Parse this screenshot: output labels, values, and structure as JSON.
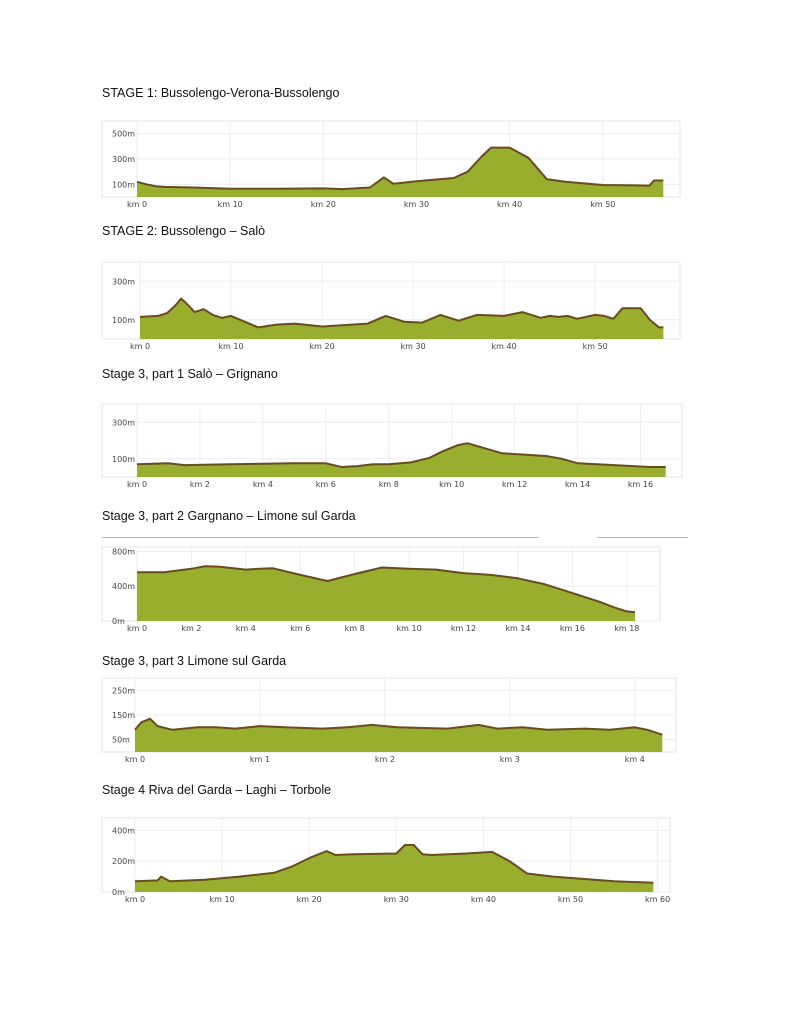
{
  "chart_data": [
    {
      "type": "area",
      "title": "STAGE 1: Bussolengo-Verona-Bussolengo",
      "x_ticks": [
        "km 0",
        "km 10",
        "km 20",
        "km 30",
        "km 40",
        "km 50"
      ],
      "y_ticks": [
        "500m",
        "300m",
        "100m"
      ],
      "xlim": [
        0,
        57
      ],
      "ylim": [
        0,
        600
      ],
      "x": [
        0,
        1,
        2,
        3,
        6,
        10,
        15,
        20,
        22,
        25,
        26.5,
        27.5,
        30,
        34,
        35.5,
        37,
        38,
        40,
        42,
        44,
        46,
        50,
        55,
        55.5,
        56.5
      ],
      "y": [
        120,
        100,
        85,
        80,
        75,
        65,
        65,
        68,
        62,
        75,
        155,
        105,
        125,
        150,
        200,
        320,
        390,
        390,
        310,
        140,
        120,
        95,
        90,
        130,
        130
      ],
      "fill": "#99ad2e",
      "stroke": "#6b4a1e"
    },
    {
      "type": "area",
      "title": "STAGE 2: Bussolengo – Salò",
      "x_ticks": [
        "km 0",
        "km 10",
        "km 20",
        "km 30",
        "km 40",
        "km 50"
      ],
      "y_ticks": [
        "300m",
        "100m"
      ],
      "xlim": [
        0,
        58
      ],
      "ylim": [
        0,
        400
      ],
      "x": [
        0,
        2,
        3,
        4,
        4.5,
        5,
        6,
        7,
        8,
        9,
        10,
        12,
        13,
        15,
        17,
        20,
        25,
        27,
        29,
        31,
        33,
        35,
        37,
        40,
        42,
        44,
        45,
        46,
        47,
        48,
        50,
        51,
        52,
        53,
        55,
        56,
        57,
        57.5
      ],
      "y": [
        115,
        120,
        135,
        180,
        210,
        190,
        140,
        155,
        125,
        110,
        120,
        80,
        60,
        75,
        80,
        65,
        80,
        120,
        90,
        85,
        125,
        95,
        125,
        120,
        140,
        110,
        120,
        115,
        120,
        105,
        125,
        120,
        105,
        160,
        160,
        100,
        60,
        60
      ],
      "fill": "#99ad2e",
      "stroke": "#6b4a1e"
    },
    {
      "type": "area",
      "title": "Stage 3, part 1 Salò – Grignano",
      "x_ticks": [
        "km 0",
        "km 2",
        "km 4",
        "km 6",
        "km 8",
        "km 10",
        "km 12",
        "km 14",
        "km 16"
      ],
      "y_ticks": [
        "300m",
        "100m"
      ],
      "xlim": [
        0,
        17
      ],
      "ylim": [
        0,
        400
      ],
      "x": [
        0,
        1,
        1.5,
        3,
        5,
        6,
        6.5,
        7,
        7.5,
        8,
        8.7,
        9.3,
        9.7,
        10.2,
        10.5,
        11,
        11.6,
        13,
        13.5,
        14,
        16.3,
        16.8
      ],
      "y": [
        70,
        75,
        65,
        70,
        75,
        75,
        55,
        60,
        70,
        70,
        80,
        105,
        140,
        175,
        185,
        160,
        130,
        115,
        100,
        75,
        55,
        55
      ],
      "fill": "#99ad2e",
      "stroke": "#6b4a1e"
    },
    {
      "type": "area",
      "title": "Stage 3, part 2 Gargnano – Limone sul Garda",
      "x_ticks": [
        "km 0",
        "km 2",
        "km 4",
        "km 6",
        "km 8",
        "km 10",
        "km 12",
        "km 14",
        "km 16",
        "km 18"
      ],
      "y_ticks": [
        "800m",
        "400m",
        "0m"
      ],
      "xlim": [
        0,
        19
      ],
      "ylim": [
        0,
        850
      ],
      "x": [
        0,
        1,
        2,
        2.5,
        3,
        4,
        4.5,
        5,
        6,
        7,
        8,
        9,
        10,
        11,
        12,
        13,
        14,
        15,
        16,
        17,
        17.5,
        18,
        18.3
      ],
      "y": [
        560,
        560,
        600,
        630,
        625,
        590,
        600,
        605,
        530,
        460,
        540,
        615,
        600,
        590,
        550,
        530,
        490,
        420,
        320,
        220,
        160,
        110,
        100
      ],
      "fill": "#99ad2e",
      "stroke": "#6b4a1e"
    },
    {
      "type": "area",
      "title": "Stage 3, part 3 Limone sul Garda",
      "x_ticks": [
        "km 0",
        "km 1",
        "km 2",
        "km 3",
        "km 4"
      ],
      "y_ticks": [
        "250m",
        "150m",
        "50m"
      ],
      "xlim": [
        0,
        4.3
      ],
      "ylim": [
        0,
        300
      ],
      "x": [
        0,
        0.05,
        0.12,
        0.18,
        0.3,
        0.5,
        0.65,
        0.8,
        1.0,
        1.2,
        1.5,
        1.7,
        1.9,
        2.1,
        2.5,
        2.75,
        2.9,
        3.1,
        3.3,
        3.6,
        3.8,
        4.0,
        4.1,
        4.22
      ],
      "y": [
        90,
        120,
        135,
        105,
        90,
        100,
        100,
        95,
        105,
        100,
        95,
        100,
        110,
        100,
        95,
        110,
        95,
        100,
        90,
        95,
        90,
        100,
        90,
        70
      ],
      "fill": "#99ad2e",
      "stroke": "#6b4a1e"
    },
    {
      "type": "area",
      "title": "Stage 4 Riva del Garda – Laghi – Torbole",
      "x_ticks": [
        "km 0",
        "km 10",
        "km 20",
        "km 30",
        "km 40",
        "km 50",
        "km 60"
      ],
      "y_ticks": [
        "400m",
        "200m",
        "0m"
      ],
      "xlim": [
        0,
        60.5
      ],
      "ylim": [
        0,
        480
      ],
      "x": [
        0,
        2.6,
        3,
        4,
        8,
        12,
        16,
        18,
        20,
        22,
        23,
        25,
        30,
        31,
        32,
        33,
        34,
        38,
        41,
        43,
        45,
        48,
        55,
        59.5
      ],
      "y": [
        70,
        75,
        100,
        70,
        80,
        100,
        125,
        165,
        220,
        265,
        240,
        245,
        250,
        305,
        305,
        245,
        240,
        250,
        260,
        200,
        120,
        100,
        70,
        60
      ],
      "fill": "#99ad2e",
      "stroke": "#6b4a1e"
    }
  ]
}
